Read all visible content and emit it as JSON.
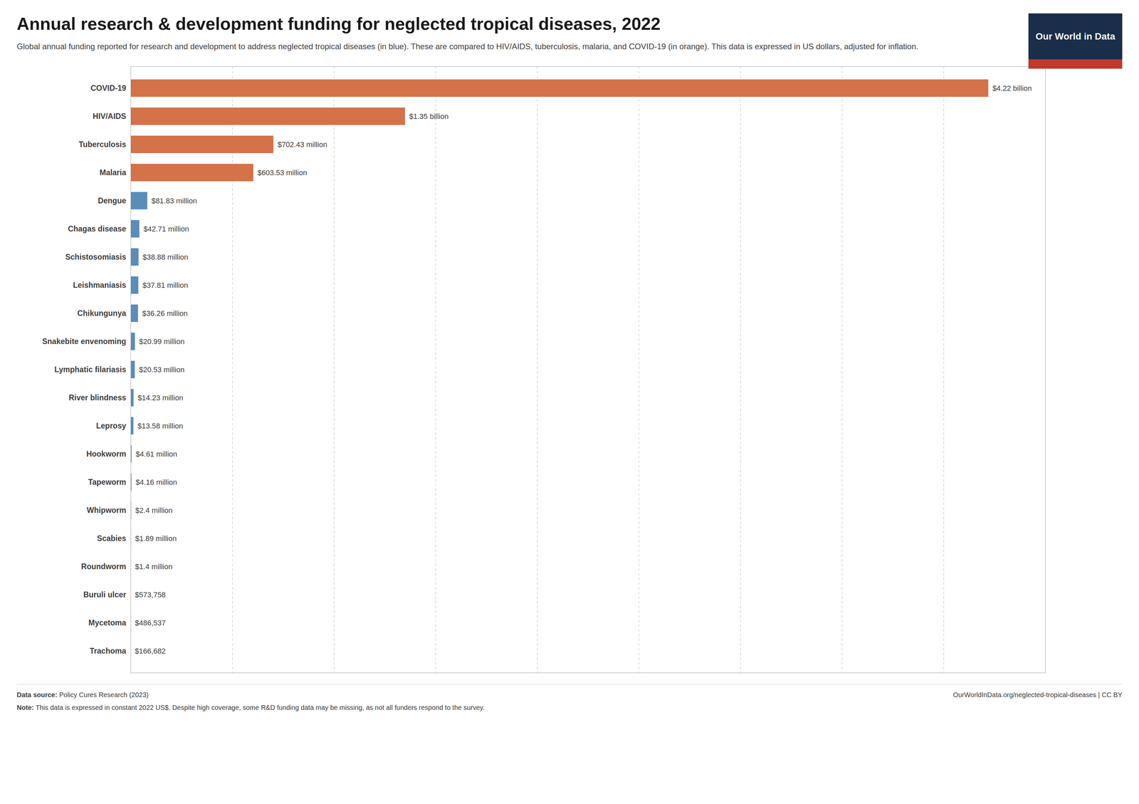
{
  "chart_data": {
    "type": "bar",
    "orientation": "horizontal",
    "title": "Annual research & development funding for neglected tropical diseases, 2022",
    "subtitle": "Global annual funding reported for research and development to address neglected tropical diseases (in blue). These are compared to HIV/AIDS, tuberculosis, malaria, and COVID-19 (in orange). This data is expressed in US dollars, adjusted for inflation.",
    "categories": [
      "COVID-19",
      "HIV/AIDS",
      "Tuberculosis",
      "Malaria",
      "Dengue",
      "Chagas disease",
      "Schistosomiasis",
      "Leishmaniasis",
      "Chikungunya",
      "Snakebite envenoming",
      "Lymphatic filariasis",
      "River blindness",
      "Leprosy",
      "Hookworm",
      "Tapeworm",
      "Whipworm",
      "Scabies",
      "Roundworm",
      "Buruli ulcer",
      "Mycetoma",
      "Trachoma"
    ],
    "values": [
      4220000000,
      1350000000,
      702430000,
      603530000,
      81830000,
      42710000,
      38880000,
      37810000,
      36260000,
      20990000,
      20530000,
      14230000,
      13580000,
      4610000,
      4160000,
      2400000,
      1890000,
      1400000,
      573758,
      486537,
      166682
    ],
    "value_labels": [
      "$4.22 billion",
      "$1.35 billion",
      "$702.43 million",
      "$603.53 million",
      "$81.83 million",
      "$42.71 million",
      "$38.88 million",
      "$37.81 million",
      "$36.26 million",
      "$20.99 million",
      "$20.53 million",
      "$14.23 million",
      "$13.58 million",
      "$4.61 million",
      "$4.16 million",
      "$2.4 million",
      "$1.89 million",
      "$1.4 million",
      "$573,758",
      "$486,537",
      "$166,682"
    ],
    "colors": [
      "#d4724a",
      "#d4724a",
      "#d4724a",
      "#d4724a",
      "#5b8db8",
      "#5b8db8",
      "#5b8db8",
      "#5b8db8",
      "#5b8db8",
      "#5b8db8",
      "#5b8db8",
      "#5b8db8",
      "#5b8db8",
      "#5b8db8",
      "#5b8db8",
      "#5b8db8",
      "#5b8db8",
      "#5b8db8",
      "#5b8db8",
      "#5b8db8",
      "#5b8db8"
    ],
    "xlim": [
      0,
      4500000000
    ],
    "xticks": [
      500000000,
      1000000000,
      1500000000,
      2000000000,
      2500000000,
      3000000000,
      3500000000,
      4000000000
    ],
    "grid": true,
    "data_labels": true,
    "tick_labels": "y",
    "annotations": [
      "Data source: Policy Cures Research (2023)",
      "OurWorldInData.org/neglected-tropical-diseases | CC BY",
      "Note: This data is expressed in constant 2022 US$. Despite high coverage, some R&D funding data may be missing, as not all funders respond to the survey.",
      "Our World in Data"
    ]
  }
}
